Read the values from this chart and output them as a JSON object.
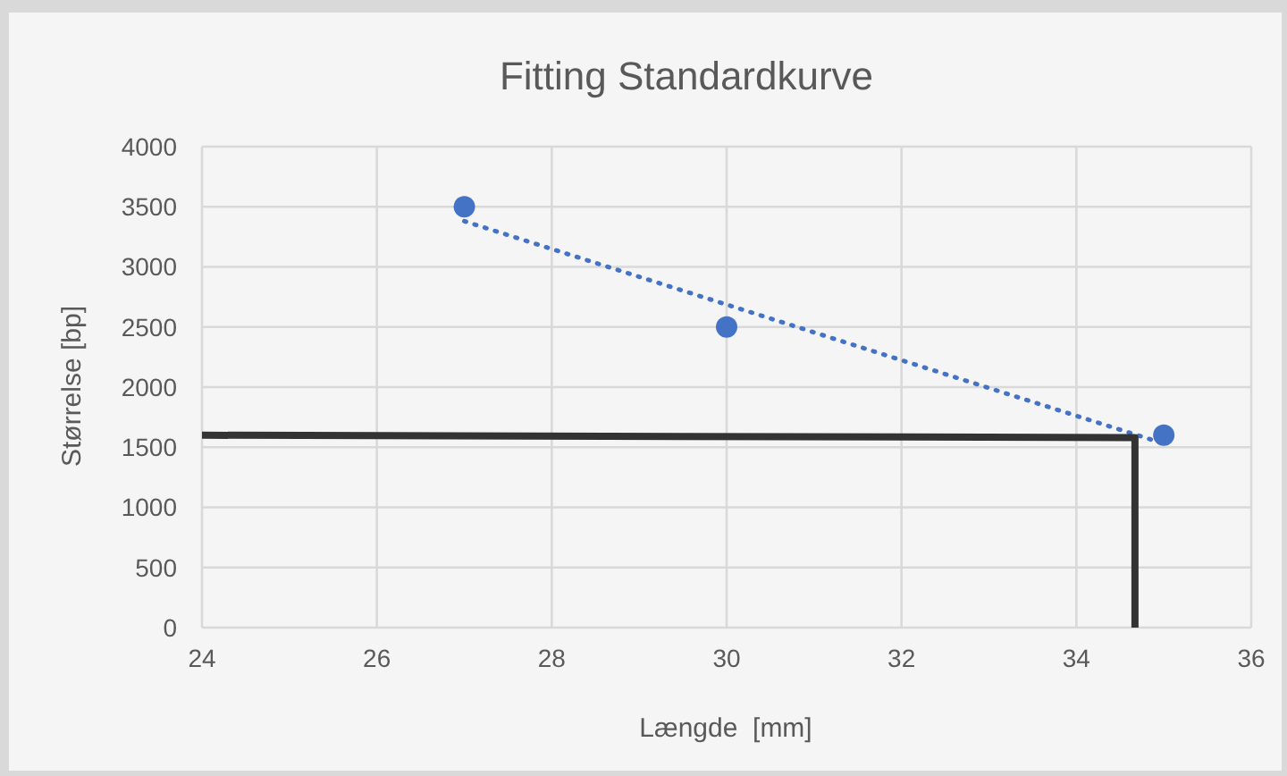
{
  "chart_data": {
    "type": "scatter",
    "title": "Fitting Standardkurve",
    "xlabel": "Længde  [mm]",
    "ylabel": "Størrelse [bp]",
    "xlim": [
      24,
      36
    ],
    "xticks": [
      24,
      26,
      28,
      30,
      32,
      34,
      36
    ],
    "ylim": [
      0,
      4000
    ],
    "yticks": [
      0,
      500,
      1000,
      1500,
      2000,
      2500,
      3000,
      3500,
      4000
    ],
    "grid": true,
    "marker": "circle",
    "series": [
      {
        "color": "#4472c4",
        "x": [
          27,
          30,
          35
        ],
        "values": [
          3500,
          2500,
          1600
        ]
      },
      {
        "type": "line",
        "color": "#4472c4",
        "line_style": "dotted",
        "marker": "none",
        "x": [
          27,
          35
        ],
        "values": [
          3380,
          1530
        ]
      },
      {
        "type": "line",
        "color": "#333333",
        "line_style": "solid",
        "marker": "none",
        "x": [
          24,
          34.67,
          34.67
        ],
        "values": [
          1600,
          1580,
          0
        ]
      }
    ]
  }
}
